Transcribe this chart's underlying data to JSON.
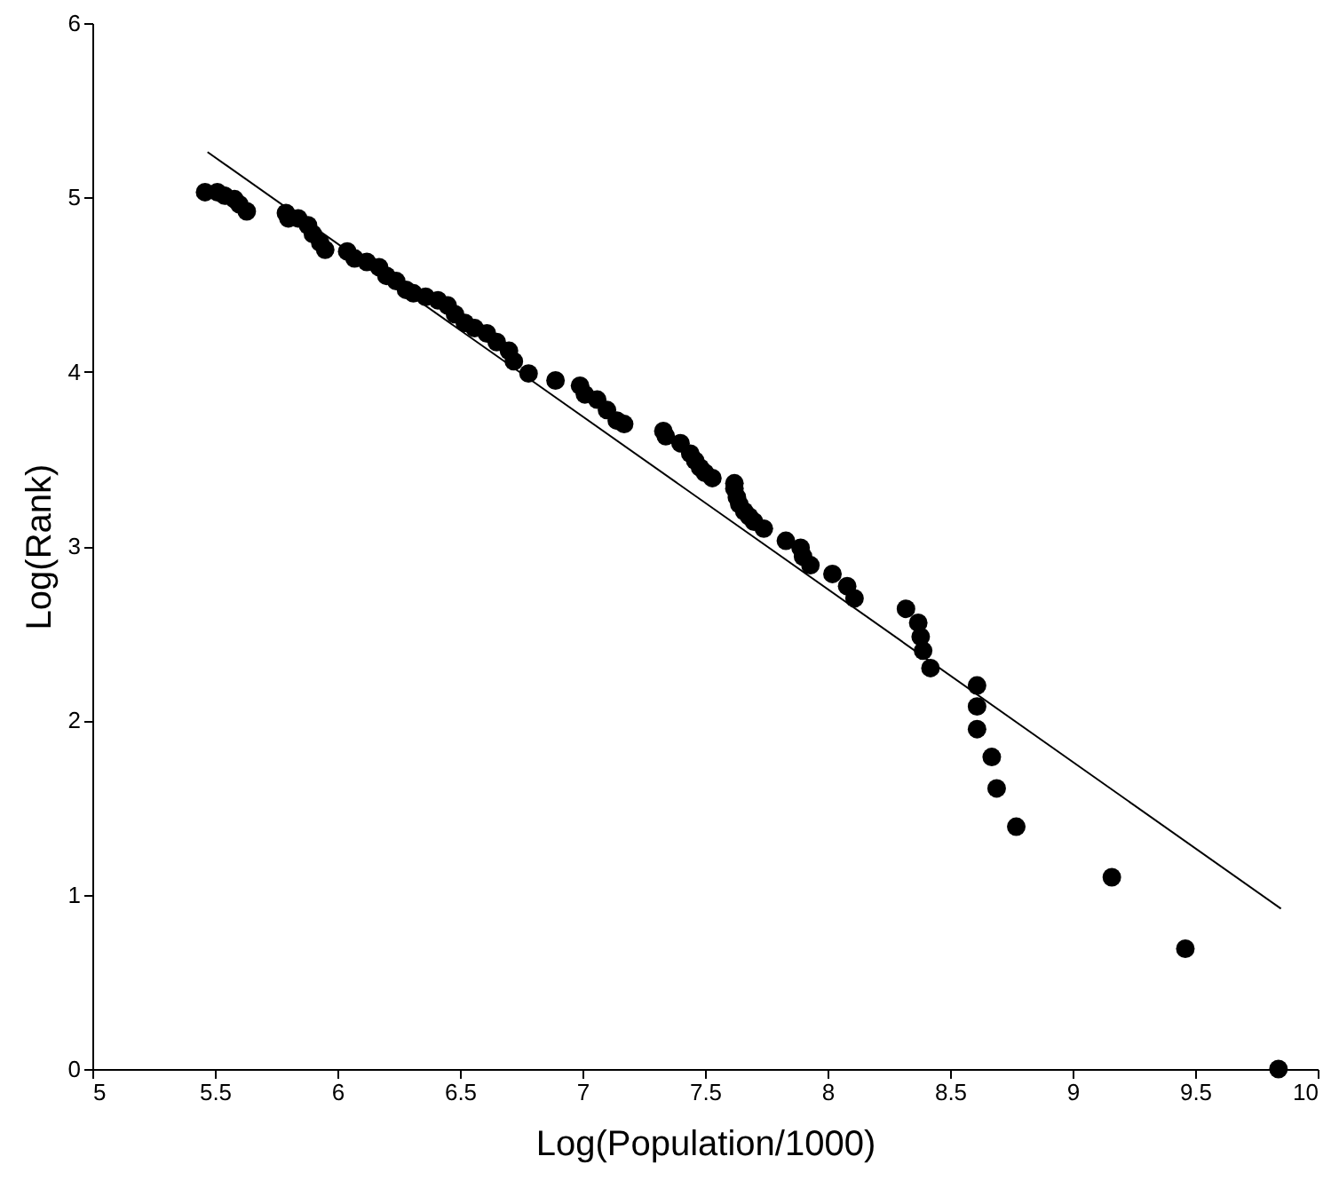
{
  "chart_data": {
    "type": "scatter",
    "xlabel": "Log(Population/1000)",
    "ylabel": "Log(Rank)",
    "xlim": [
      5,
      10
    ],
    "ylim": [
      0,
      6
    ],
    "xticks": [
      5,
      5.5,
      6,
      6.5,
      7,
      7.5,
      8,
      8.5,
      9,
      9.5,
      10
    ],
    "yticks": [
      0,
      1,
      2,
      3,
      4,
      5,
      6
    ],
    "grid": false,
    "series": [
      {
        "color": "#000000",
        "marker": "circle",
        "x": [
          5.46,
          5.51,
          5.54,
          5.58,
          5.6,
          5.63,
          5.79,
          5.8,
          5.84,
          5.88,
          5.9,
          5.93,
          5.95,
          6.04,
          6.07,
          6.12,
          6.17,
          6.2,
          6.24,
          6.28,
          6.31,
          6.36,
          6.41,
          6.45,
          6.48,
          6.52,
          6.56,
          6.61,
          6.65,
          6.7,
          6.72,
          6.78,
          6.89,
          6.99,
          7.01,
          7.06,
          7.1,
          7.14,
          7.17,
          7.33,
          7.34,
          7.4,
          7.44,
          7.46,
          7.48,
          7.5,
          7.53,
          7.62,
          7.62,
          7.63,
          7.64,
          7.66,
          7.68,
          7.7,
          7.74,
          7.83,
          7.89,
          7.9,
          7.93,
          8.02,
          8.08,
          8.11,
          8.32,
          8.37,
          8.38,
          8.39,
          8.42,
          8.61,
          8.61,
          8.61,
          8.67,
          8.69,
          8.77,
          9.16,
          9.46,
          9.84
        ],
        "values": [
          5.03,
          5.03,
          5.01,
          4.99,
          4.96,
          4.92,
          4.91,
          4.88,
          4.88,
          4.84,
          4.79,
          4.74,
          4.7,
          4.69,
          4.65,
          4.63,
          4.6,
          4.55,
          4.52,
          4.47,
          4.45,
          4.43,
          4.41,
          4.38,
          4.33,
          4.28,
          4.25,
          4.22,
          4.17,
          4.12,
          4.06,
          3.99,
          3.95,
          3.92,
          3.87,
          3.84,
          3.78,
          3.72,
          3.7,
          3.66,
          3.63,
          3.59,
          3.53,
          3.49,
          3.45,
          3.42,
          3.39,
          3.36,
          3.33,
          3.28,
          3.24,
          3.2,
          3.17,
          3.14,
          3.1,
          3.03,
          2.99,
          2.94,
          2.89,
          2.84,
          2.77,
          2.7,
          2.64,
          2.56,
          2.48,
          2.4,
          2.3,
          2.2,
          2.08,
          1.95,
          1.79,
          1.61,
          1.39,
          1.1,
          0.69,
          0
        ]
      },
      {
        "type": "line",
        "color": "#000000",
        "marker": "none",
        "line_style": "solid",
        "x": [
          5.47,
          9.85
        ],
        "values": [
          5.26,
          0.92
        ]
      }
    ]
  }
}
